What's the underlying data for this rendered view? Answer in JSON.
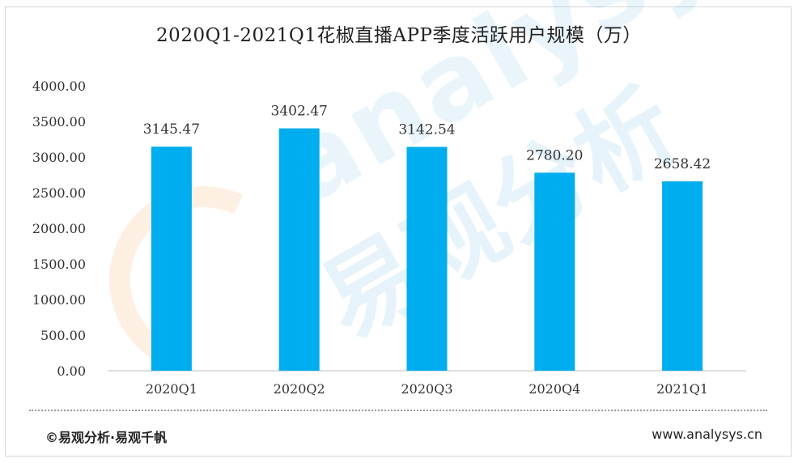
{
  "chart_data": {
    "type": "bar",
    "title": "2020Q1-2021Q1花椒直播APP季度活跃用户规模（万）",
    "categories": [
      "2020Q1",
      "2020Q2",
      "2020Q3",
      "2020Q4",
      "2021Q1"
    ],
    "values": [
      3145.47,
      3402.47,
      3142.54,
      2780.2,
      2658.42
    ],
    "value_labels": [
      "3145.47",
      "3402.47",
      "3142.54",
      "2780.20",
      "2658.42"
    ],
    "yticks": [
      "0.00",
      "500.00",
      "1000.00",
      "1500.00",
      "2000.00",
      "2500.00",
      "3000.00",
      "3500.00",
      "4000.00"
    ],
    "ylim": [
      0,
      4000
    ],
    "grid": false,
    "legend": "none",
    "bar_color": "#00aeef"
  },
  "footer": {
    "source": "©易观分析·易观千帆",
    "website": "www.analysys.cn"
  },
  "watermark": {
    "text_en": "analysys",
    "text_cn": "易观分析"
  }
}
